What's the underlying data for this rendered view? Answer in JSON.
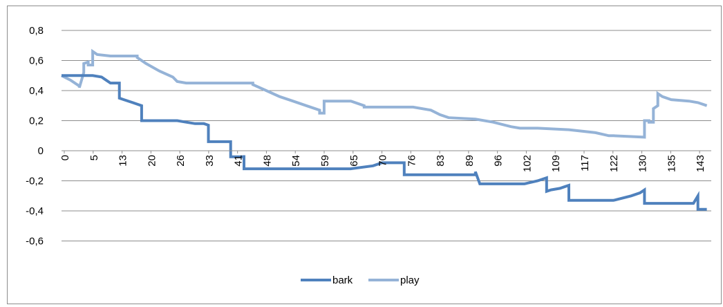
{
  "chart_data": {
    "type": "line",
    "title": "",
    "xlabel": "",
    "ylabel": "",
    "ylim": [
      -0.7,
      0.9
    ],
    "yticks": [
      "0,8",
      "0,6",
      "0,4",
      "0,2",
      "0",
      "-0,2",
      "-0,4",
      "-0,6"
    ],
    "ytick_values": [
      0.8,
      0.6,
      0.4,
      0.2,
      0,
      -0.2,
      -0.4,
      -0.6
    ],
    "xticks": [
      "0",
      "5",
      "13",
      "20",
      "26",
      "33",
      "41",
      "48",
      "54",
      "59",
      "65",
      "70",
      "76",
      "83",
      "89",
      "96",
      "102",
      "109",
      "117",
      "122",
      "130",
      "135",
      "143"
    ],
    "xlim": [
      0,
      146
    ],
    "grid": true,
    "legend_position": "bottom",
    "series": [
      {
        "name": "bark",
        "color": "#4f81bd",
        "x": [
          0,
          5,
          7,
          9,
          10,
          11,
          12,
          13,
          13,
          14,
          16,
          17,
          18,
          18,
          26,
          28,
          30,
          32,
          33,
          33,
          38,
          38,
          41,
          41,
          41,
          45,
          65,
          70,
          72,
          77,
          77,
          93,
          93,
          94,
          100,
          104,
          107,
          109,
          109,
          110,
          112,
          113,
          114,
          114,
          119,
          124,
          128,
          130,
          131,
          131,
          137,
          142,
          143,
          143,
          145
        ],
        "y": [
          0.5,
          0.5,
          0.5,
          0.49,
          0.47,
          0.45,
          0.45,
          0.45,
          0.35,
          0.34,
          0.32,
          0.31,
          0.3,
          0.2,
          0.2,
          0.19,
          0.18,
          0.18,
          0.17,
          0.06,
          0.06,
          -0.04,
          -0.04,
          -0.03,
          -0.12,
          -0.12,
          -0.12,
          -0.1,
          -0.08,
          -0.08,
          -0.16,
          -0.16,
          -0.14,
          -0.22,
          -0.22,
          -0.22,
          -0.2,
          -0.18,
          -0.27,
          -0.26,
          -0.25,
          -0.24,
          -0.23,
          -0.33,
          -0.33,
          -0.33,
          -0.3,
          -0.28,
          -0.26,
          -0.35,
          -0.35,
          -0.35,
          -0.3,
          -0.39,
          -0.39
        ]
      },
      {
        "name": "play",
        "color": "#95b3d7",
        "x": [
          0,
          2,
          4,
          4,
          5,
          5,
          6,
          6,
          7,
          7,
          8,
          11,
          17,
          17,
          19,
          22,
          25,
          26,
          28,
          33,
          43,
          43,
          46,
          49,
          52,
          55,
          58,
          58,
          59,
          59,
          60,
          65,
          68,
          68,
          79,
          83,
          85,
          87,
          93,
          97,
          101,
          103,
          107,
          114,
          120,
          123,
          124,
          131,
          131,
          132,
          132,
          133,
          133,
          134,
          134,
          135,
          137,
          141,
          143,
          145
        ],
        "y": [
          0.5,
          0.47,
          0.43,
          0.42,
          0.52,
          0.58,
          0.59,
          0.57,
          0.57,
          0.66,
          0.64,
          0.63,
          0.63,
          0.62,
          0.58,
          0.53,
          0.49,
          0.46,
          0.45,
          0.45,
          0.45,
          0.44,
          0.4,
          0.36,
          0.33,
          0.3,
          0.27,
          0.25,
          0.25,
          0.33,
          0.33,
          0.33,
          0.3,
          0.29,
          0.29,
          0.27,
          0.24,
          0.22,
          0.21,
          0.19,
          0.16,
          0.15,
          0.15,
          0.14,
          0.12,
          0.1,
          0.1,
          0.09,
          0.2,
          0.2,
          0.19,
          0.19,
          0.28,
          0.3,
          0.38,
          0.36,
          0.34,
          0.33,
          0.32,
          0.3
        ]
      }
    ]
  }
}
